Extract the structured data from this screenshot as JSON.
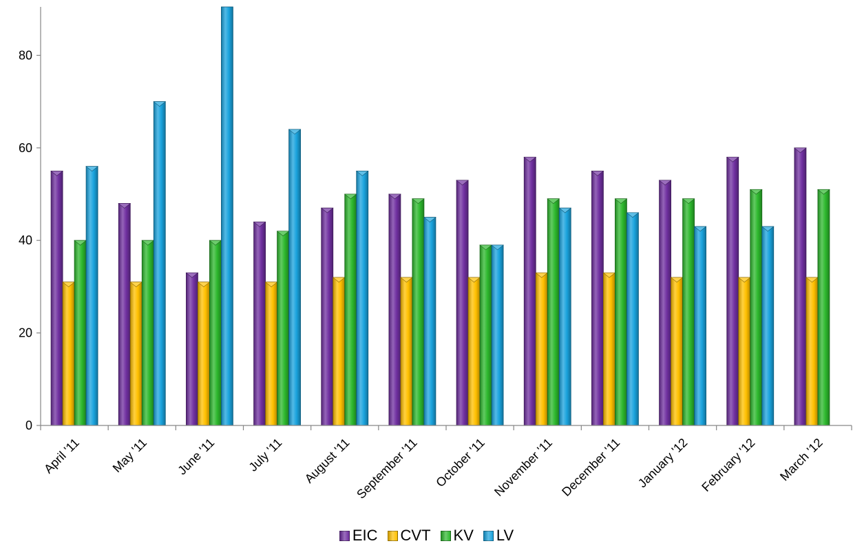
{
  "chart_data": {
    "type": "bar",
    "title": "",
    "xlabel": "",
    "ylabel": "",
    "ylim": [
      0,
      90
    ],
    "yticks": [
      0,
      20,
      40,
      60,
      80
    ],
    "grid": false,
    "legend_position": "bottom",
    "categories": [
      "April '11",
      "May '11",
      "June '11",
      "July '11",
      "August '11",
      "September '11",
      "October '11",
      "November '11",
      "December '11",
      "January '12",
      "February '12",
      "March '12"
    ],
    "series": [
      {
        "name": "EIC",
        "color": "#7030A0",
        "values": [
          55,
          48,
          33,
          44,
          47,
          50,
          53,
          58,
          55,
          53,
          58,
          60
        ]
      },
      {
        "name": "CVT",
        "color": "#FFC000",
        "values": [
          31,
          31,
          31,
          31,
          32,
          32,
          32,
          33,
          33,
          32,
          32,
          32
        ]
      },
      {
        "name": "KV",
        "color": "#2DB82D",
        "values": [
          40,
          40,
          40,
          42,
          50,
          49,
          39,
          49,
          49,
          49,
          51,
          51
        ]
      },
      {
        "name": "LV",
        "color": "#1AA3DD",
        "values": [
          56,
          70,
          92,
          64,
          55,
          45,
          39,
          47,
          46,
          43,
          43,
          null
        ]
      }
    ]
  }
}
